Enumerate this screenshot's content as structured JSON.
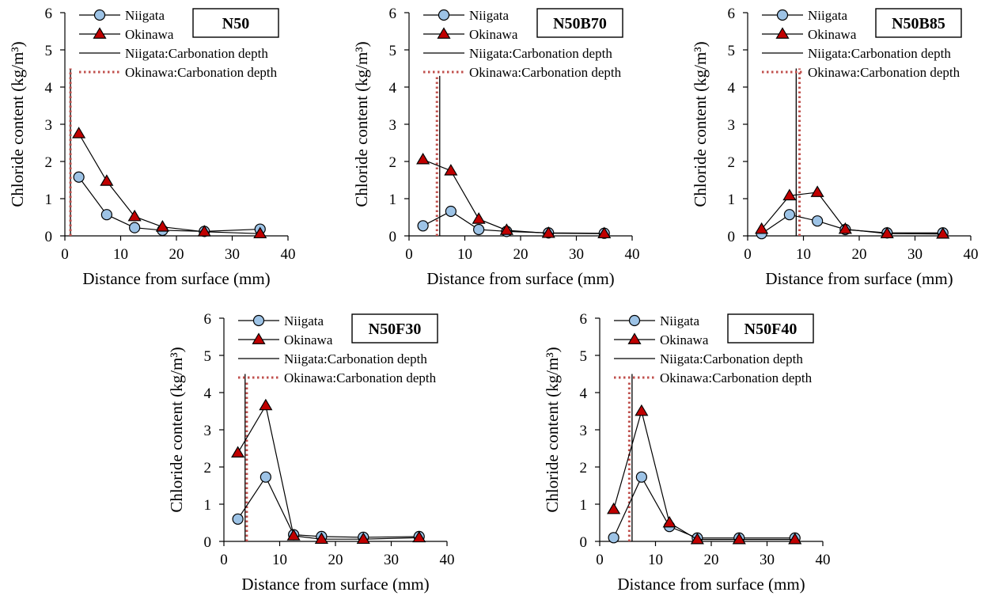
{
  "chart_data": [
    {
      "type": "line",
      "title": "N50",
      "xlabel": "Distance from surface (mm)",
      "ylabel": "Chloride content (kg/m³)",
      "xlim": [
        0,
        40
      ],
      "ylim": [
        0,
        6
      ],
      "x_ticks": [
        0,
        10,
        20,
        30,
        40
      ],
      "y_ticks": [
        0,
        1,
        2,
        3,
        4,
        5,
        6
      ],
      "grid": false,
      "legend": "top-left",
      "series": [
        {
          "name": "Niigata",
          "marker": "circle",
          "x": [
            2.5,
            7.5,
            12.5,
            17.5,
            25,
            35
          ],
          "y": [
            1.58,
            0.57,
            0.22,
            0.15,
            0.12,
            0.18
          ]
        },
        {
          "name": "Okinawa",
          "marker": "triangle",
          "x": [
            2.5,
            7.5,
            12.5,
            17.5,
            25,
            35
          ],
          "y": [
            2.75,
            1.47,
            0.52,
            0.24,
            0.11,
            0.06
          ]
        }
      ],
      "carbonation": [
        {
          "name": "Niigata:Carbonation depth",
          "style": "solid",
          "x": 1.0,
          "y_top": 4.5
        },
        {
          "name": "Okinawa:Carbonation depth",
          "style": "dotted",
          "x": 1.0,
          "y_top": 4.5
        }
      ]
    },
    {
      "type": "line",
      "title": "N50B70",
      "xlabel": "Distance from surface (mm)",
      "ylabel": "Chloride content (kg/m³)",
      "xlim": [
        0,
        40
      ],
      "ylim": [
        0,
        6
      ],
      "x_ticks": [
        0,
        10,
        20,
        30,
        40
      ],
      "y_ticks": [
        0,
        1,
        2,
        3,
        4,
        5,
        6
      ],
      "grid": false,
      "legend": "top-left",
      "series": [
        {
          "name": "Niigata",
          "marker": "circle",
          "x": [
            2.5,
            7.5,
            12.5,
            17.5,
            25,
            35
          ],
          "y": [
            0.27,
            0.66,
            0.17,
            0.12,
            0.08,
            0.07
          ]
        },
        {
          "name": "Okinawa",
          "marker": "triangle",
          "x": [
            2.5,
            7.5,
            12.5,
            17.5,
            25,
            35
          ],
          "y": [
            2.05,
            1.75,
            0.45,
            0.15,
            0.07,
            0.06
          ]
        }
      ],
      "carbonation": [
        {
          "name": "Niigata:Carbonation depth",
          "style": "solid",
          "x": 5.5,
          "y_top": 4.3
        },
        {
          "name": "Okinawa:Carbonation depth",
          "style": "dotted",
          "x": 5.0,
          "y_top": 4.3
        }
      ]
    },
    {
      "type": "line",
      "title": "N50B85",
      "xlabel": "Distance from surface (mm)",
      "ylabel": "Chloride content (kg/m³)",
      "xlim": [
        0,
        40
      ],
      "ylim": [
        0,
        6
      ],
      "x_ticks": [
        0,
        10,
        20,
        30,
        40
      ],
      "y_ticks": [
        0,
        1,
        2,
        3,
        4,
        5,
        6
      ],
      "grid": false,
      "legend": "top-left",
      "series": [
        {
          "name": "Niigata",
          "marker": "circle",
          "x": [
            2.5,
            7.5,
            12.5,
            17.5,
            25,
            35
          ],
          "y": [
            0.06,
            0.57,
            0.4,
            0.17,
            0.08,
            0.08
          ]
        },
        {
          "name": "Okinawa",
          "marker": "triangle",
          "x": [
            2.5,
            7.5,
            12.5,
            17.5,
            25,
            35
          ],
          "y": [
            0.18,
            1.08,
            1.17,
            0.18,
            0.06,
            0.05
          ]
        }
      ],
      "carbonation": [
        {
          "name": "Niigata:Carbonation depth",
          "style": "solid",
          "x": 8.7,
          "y_top": 4.5
        },
        {
          "name": "Okinawa:Carbonation depth",
          "style": "dotted",
          "x": 9.3,
          "y_top": 4.5
        }
      ]
    },
    {
      "type": "line",
      "title": "N50F30",
      "xlabel": "Distance from surface (mm)",
      "ylabel": "Chloride content (kg/m³)",
      "xlim": [
        0,
        40
      ],
      "ylim": [
        0,
        6
      ],
      "x_ticks": [
        0,
        10,
        20,
        30,
        40
      ],
      "y_ticks": [
        0,
        1,
        2,
        3,
        4,
        5,
        6
      ],
      "grid": false,
      "legend": "top-left",
      "series": [
        {
          "name": "Niigata",
          "marker": "circle",
          "x": [
            2.5,
            7.5,
            12.5,
            17.5,
            25,
            35
          ],
          "y": [
            0.6,
            1.73,
            0.18,
            0.13,
            0.11,
            0.13
          ]
        },
        {
          "name": "Okinawa",
          "marker": "triangle",
          "x": [
            2.5,
            7.5,
            12.5,
            17.5,
            25,
            35
          ],
          "y": [
            2.38,
            3.65,
            0.15,
            0.06,
            0.06,
            0.1
          ]
        }
      ],
      "carbonation": [
        {
          "name": "Niigata:Carbonation depth",
          "style": "solid",
          "x": 3.8,
          "y_top": 4.5
        },
        {
          "name": "Okinawa:Carbonation depth",
          "style": "dotted",
          "x": 4.1,
          "y_top": 4.3
        }
      ]
    },
    {
      "type": "line",
      "title": "N50F40",
      "xlabel": "Distance from surface (mm)",
      "ylabel": "Chloride content (kg/m³)",
      "xlim": [
        0,
        40
      ],
      "ylim": [
        0,
        6
      ],
      "x_ticks": [
        0,
        10,
        20,
        30,
        40
      ],
      "y_ticks": [
        0,
        1,
        2,
        3,
        4,
        5,
        6
      ],
      "grid": false,
      "legend": "top-left",
      "series": [
        {
          "name": "Niigata",
          "marker": "circle",
          "x": [
            2.5,
            7.5,
            12.5,
            17.5,
            25,
            35
          ],
          "y": [
            0.1,
            1.73,
            0.4,
            0.09,
            0.09,
            0.09
          ]
        },
        {
          "name": "Okinawa",
          "marker": "triangle",
          "x": [
            2.5,
            7.5,
            12.5,
            17.5,
            25,
            35
          ],
          "y": [
            0.86,
            3.5,
            0.5,
            0.05,
            0.05,
            0.05
          ]
        }
      ],
      "carbonation": [
        {
          "name": "Niigata:Carbonation depth",
          "style": "solid",
          "x": 5.8,
          "y_top": 4.5
        },
        {
          "name": "Okinawa:Carbonation depth",
          "style": "dotted",
          "x": 5.3,
          "y_top": 4.3
        }
      ]
    }
  ],
  "colors": {
    "niigata_fill": "#9dc3e6",
    "okinawa_fill": "#c00000",
    "okinawa_dotted": "#c0504d",
    "axis": "#000000"
  }
}
